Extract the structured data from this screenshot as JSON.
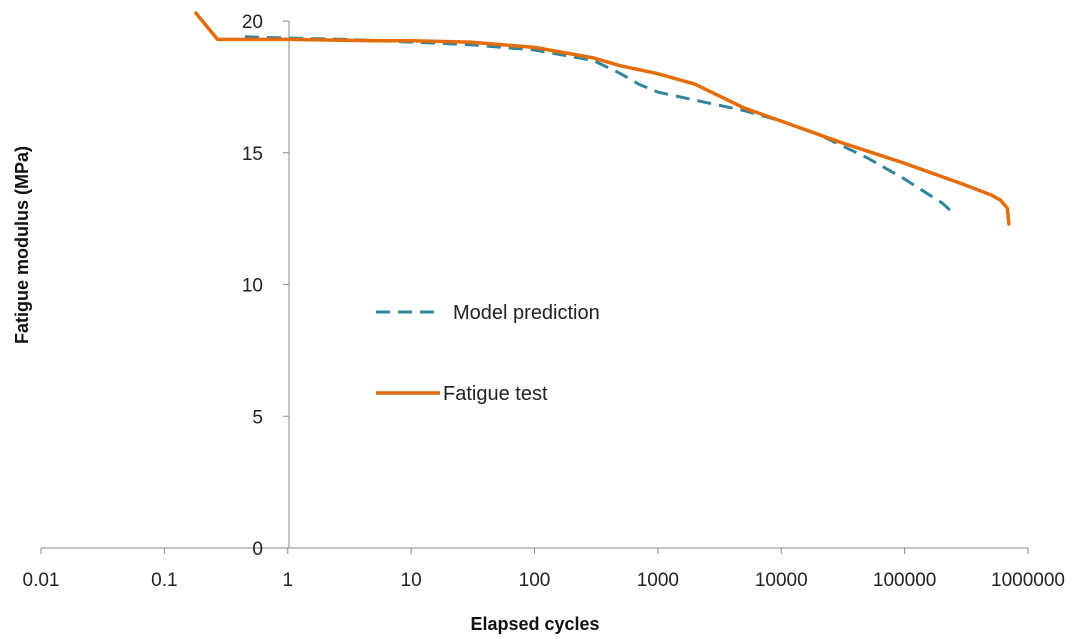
{
  "chart_data": {
    "type": "line",
    "title": "",
    "xlabel": "Elapsed cycles",
    "ylabel": "Fatigue modulus (MPa)",
    "x_scale": "log",
    "xlim": [
      0.01,
      1000000
    ],
    "ylim": [
      0,
      20
    ],
    "x_ticks": [
      0.01,
      0.1,
      1,
      10,
      100,
      1000,
      10000,
      100000,
      1000000
    ],
    "x_tick_labels": [
      "0.01",
      "0.1",
      "1",
      "10",
      "100",
      "1000",
      "10000",
      "100000",
      "1000000"
    ],
    "y_ticks": [
      0,
      5,
      10,
      15,
      20
    ],
    "y_tick_labels": [
      "0",
      "5",
      "10",
      "15",
      "20"
    ],
    "grid": false,
    "legend_position": "center",
    "series": [
      {
        "name": "Model prediction",
        "color": "#31859C",
        "style": "dashed",
        "x": [
          0.45,
          1,
          3,
          10,
          30,
          100,
          300,
          500,
          700,
          1000,
          2000,
          5000,
          10000,
          20000,
          50000,
          100000,
          200000,
          250000
        ],
        "y": [
          19.4,
          19.35,
          19.3,
          19.2,
          19.1,
          18.9,
          18.5,
          18.0,
          17.6,
          17.3,
          17.0,
          16.6,
          16.2,
          15.7,
          14.8,
          14.0,
          13.1,
          12.7
        ]
      },
      {
        "name": "Fatigue test",
        "color": "#E46C0A",
        "style": "solid",
        "x": [
          0.18,
          0.27,
          0.35,
          1,
          5,
          10,
          30,
          100,
          300,
          500,
          1000,
          2000,
          5000,
          10000,
          30000,
          100000,
          300000,
          500000,
          600000,
          680000,
          700000
        ],
        "y": [
          20.3,
          19.3,
          19.3,
          19.3,
          19.25,
          19.25,
          19.2,
          19.0,
          18.6,
          18.3,
          18.0,
          17.6,
          16.7,
          16.2,
          15.4,
          14.6,
          13.8,
          13.4,
          13.2,
          12.9,
          12.3
        ]
      }
    ]
  }
}
